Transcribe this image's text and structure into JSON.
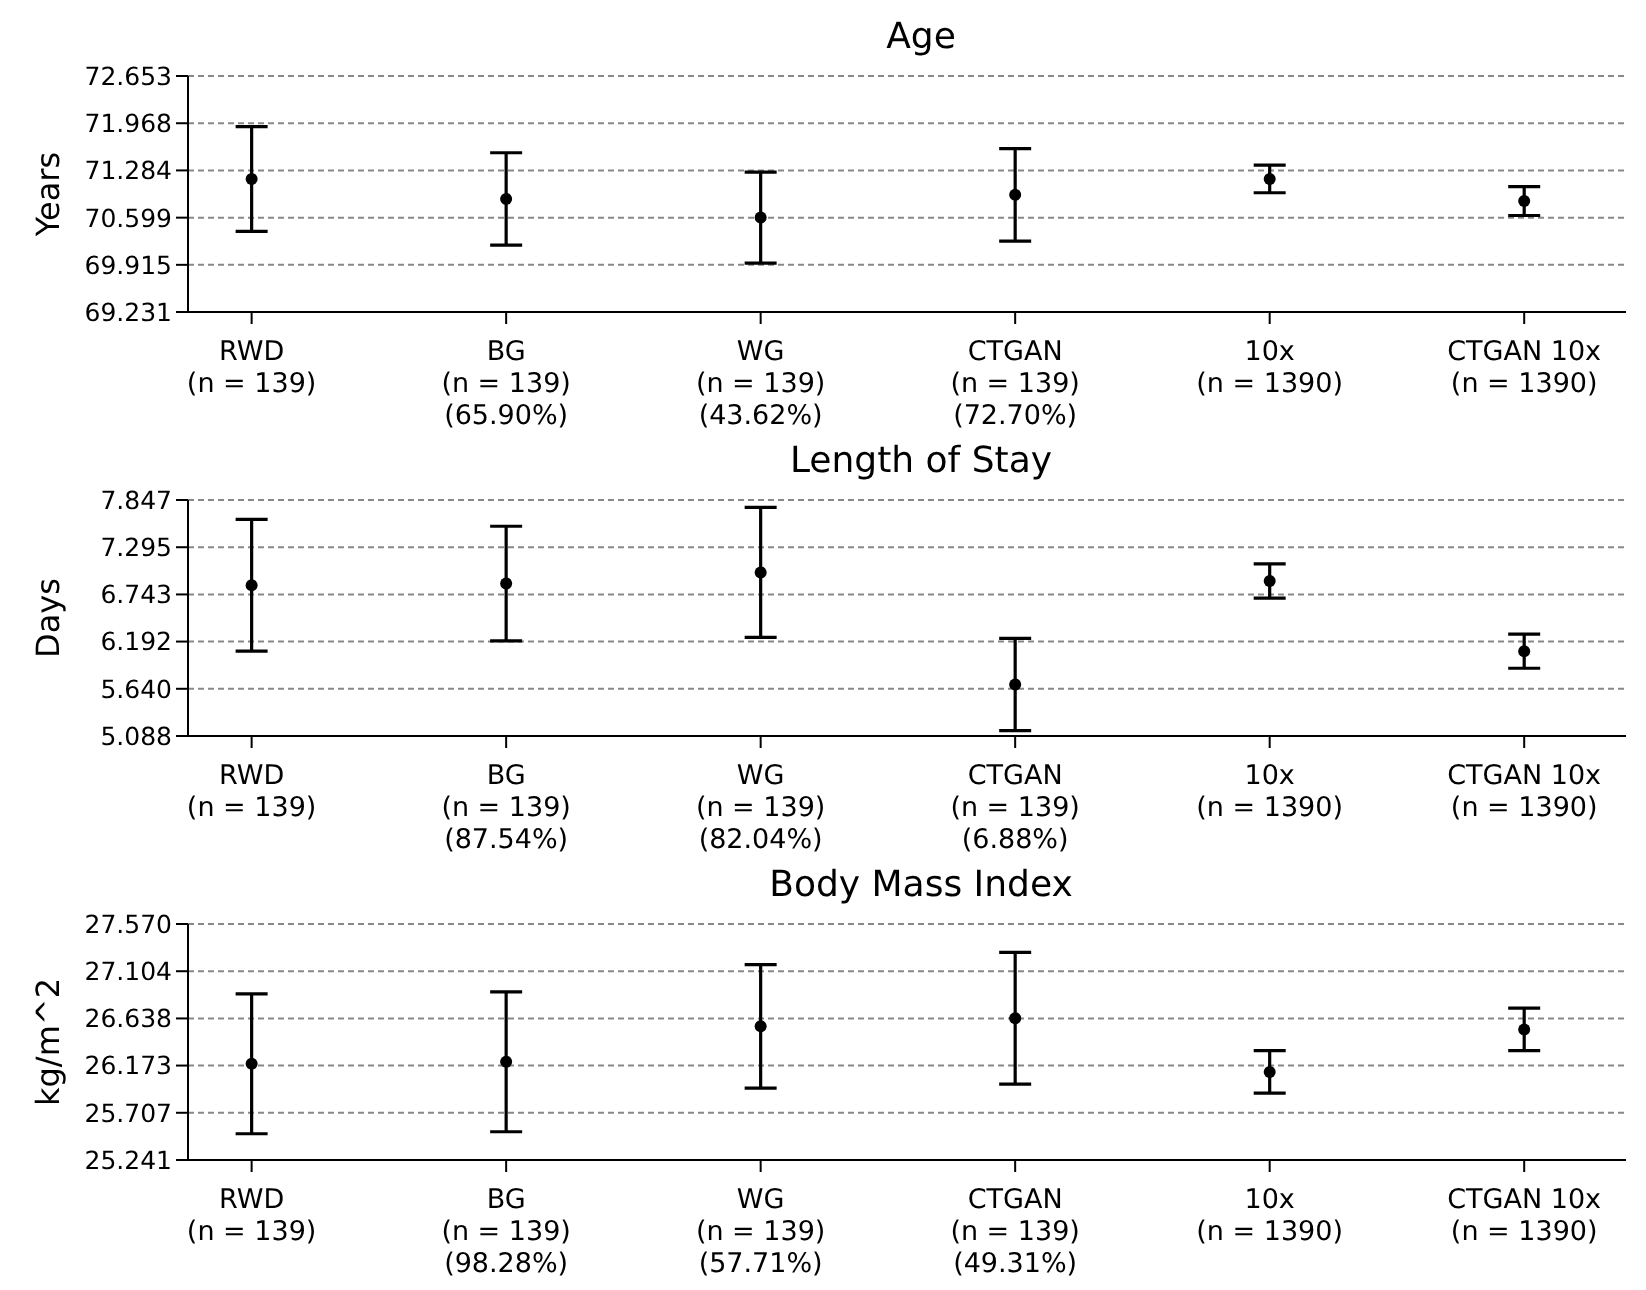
{
  "chart_data": [
    {
      "type": "scatter",
      "title": "Age",
      "ylabel": "Years",
      "categories": [
        "RWD\n(n = 139)",
        "BG\n(n = 139)\n(65.90%)",
        "WG\n(n = 139)\n(43.62%)",
        "CTGAN\n(n = 139)\n(72.70%)",
        "10x\n(n = 1390)",
        "CTGAN 10x\n(n = 1390)"
      ],
      "values": [
        71.16,
        70.87,
        70.6,
        70.93,
        71.16,
        70.84
      ],
      "errors": [
        0.76,
        0.67,
        0.66,
        0.67,
        0.2,
        0.21
      ],
      "color": "#000000",
      "marker": "circle",
      "grid": "y",
      "ylim": [
        69.231,
        72.653
      ],
      "yticks": [
        69.231,
        69.915,
        70.599,
        71.284,
        71.968,
        72.653
      ]
    },
    {
      "type": "scatter",
      "title": "Length of Stay",
      "ylabel": "Days",
      "categories": [
        "RWD\n(n = 139)",
        "BG\n(n = 139)\n(87.54%)",
        "WG\n(n = 139)\n(82.04%)",
        "CTGAN\n(n = 139)\n(6.88%)",
        "10x\n(n = 1390)",
        "CTGAN 10x\n(n = 1390)"
      ],
      "values": [
        6.85,
        6.87,
        7.0,
        5.69,
        6.9,
        6.08
      ],
      "errors": [
        0.77,
        0.67,
        0.76,
        0.54,
        0.2,
        0.2
      ],
      "color": "#000000",
      "marker": "circle",
      "grid": "y",
      "ylim": [
        5.088,
        7.847
      ],
      "yticks": [
        5.088,
        {
          "value": 5.64,
          "label": "5.640"
        },
        6.192,
        6.743,
        7.295,
        7.847
      ]
    },
    {
      "type": "scatter",
      "title": "Body Mass Index",
      "ylabel": "kg/m^2",
      "categories": [
        "RWD\n(n = 139)",
        "BG\n(n = 139)\n(98.28%)",
        "WG\n(n = 139)\n(57.71%)",
        "CTGAN\n(n = 139)\n(49.31%)",
        "10x\n(n = 1390)",
        "CTGAN 10x\n(n = 1390)"
      ],
      "values": [
        26.19,
        26.21,
        26.56,
        26.64,
        26.11,
        26.53
      ],
      "errors": [
        0.69,
        0.69,
        0.61,
        0.65,
        0.21,
        0.21
      ],
      "color": "#000000",
      "marker": "circle",
      "grid": "y",
      "ylim": [
        25.241,
        27.57
      ],
      "yticks": [
        25.241,
        25.707,
        26.173,
        26.638,
        27.104,
        {
          "value": 27.57,
          "label": "27.570"
        }
      ]
    }
  ]
}
